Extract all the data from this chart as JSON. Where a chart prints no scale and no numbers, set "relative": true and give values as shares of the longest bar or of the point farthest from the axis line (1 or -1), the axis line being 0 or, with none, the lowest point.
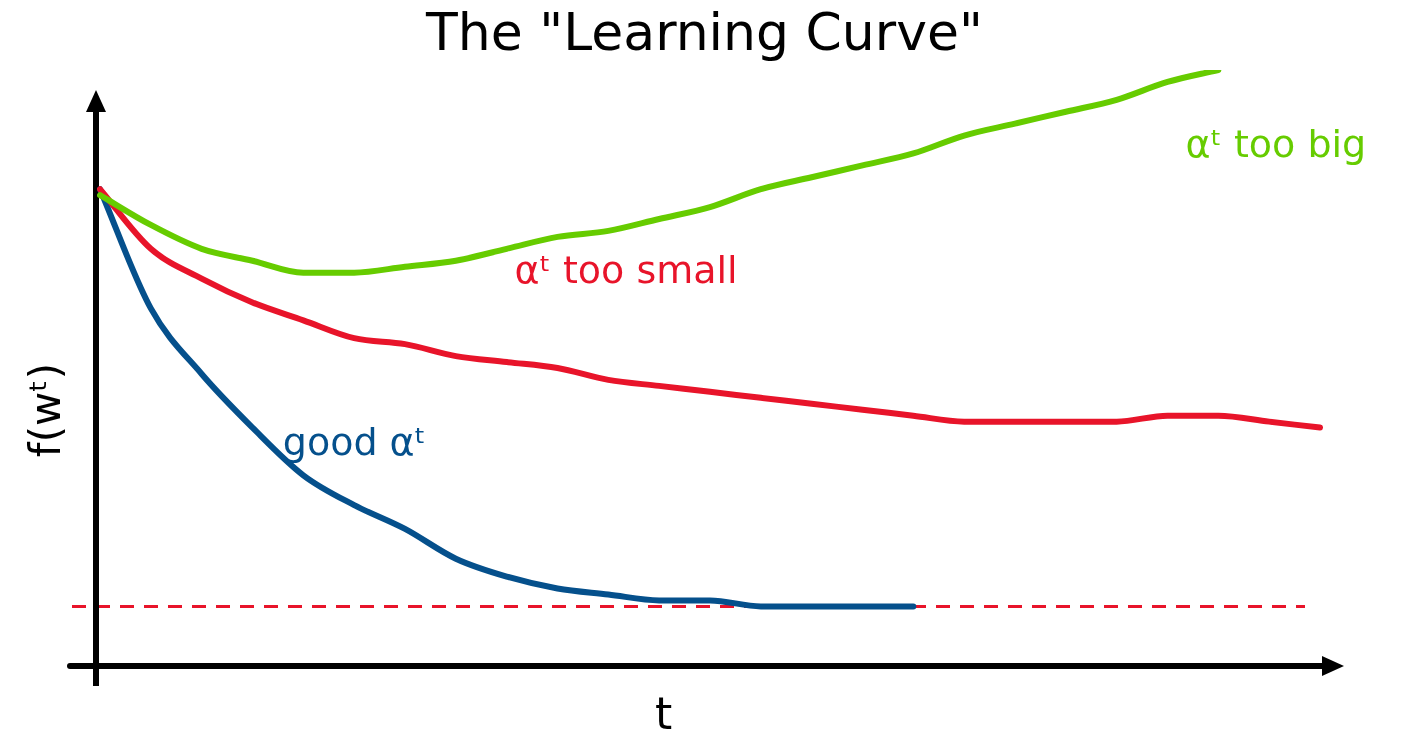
{
  "chart_data": {
    "type": "line",
    "title": "The \"Learning Curve\"",
    "xlabel": "t",
    "ylabel": "f(wᵗ)",
    "relative": true,
    "marker": "none",
    "categories": [
      null,
      null,
      null,
      null,
      null,
      null,
      null,
      null,
      null,
      null,
      null,
      null,
      null,
      null,
      null,
      null,
      null,
      null,
      null,
      null,
      null,
      null,
      null,
      null,
      null
    ],
    "series": [
      {
        "color": "#66cc00",
        "values": [
          0.79,
          0.74,
          0.7,
          0.68,
          0.66,
          0.66,
          0.67,
          0.68,
          0.7,
          0.72,
          0.73,
          0.75,
          0.77,
          0.8,
          0.82,
          0.84,
          0.86,
          0.89,
          0.91,
          0.93,
          0.95,
          0.98,
          1.0,
          null,
          null
        ]
      },
      {
        "color": "#e8142a",
        "values": [
          0.8,
          0.7,
          0.65,
          0.61,
          0.58,
          0.55,
          0.54,
          0.52,
          0.51,
          0.5,
          0.48,
          0.47,
          0.46,
          0.45,
          0.44,
          0.43,
          0.42,
          0.41,
          0.41,
          0.41,
          0.41,
          0.42,
          0.42,
          0.41,
          0.4
        ]
      },
      {
        "color": "#05508c",
        "values": [
          0.8,
          0.6,
          0.49,
          0.4,
          0.32,
          0.27,
          0.23,
          0.18,
          0.15,
          0.13,
          0.12,
          0.11,
          0.11,
          0.1,
          0.1,
          0.1,
          0.1,
          null,
          null,
          null,
          null,
          null,
          null,
          null,
          null
        ]
      }
    ],
    "ref_lines": [
      {
        "axis": "y",
        "value": 0.1,
        "color": "#e8142a",
        "line_style": "dashed"
      }
    ],
    "annotations": [
      "αᵗ too big",
      "αᵗ too small",
      "good αᵗ"
    ]
  }
}
